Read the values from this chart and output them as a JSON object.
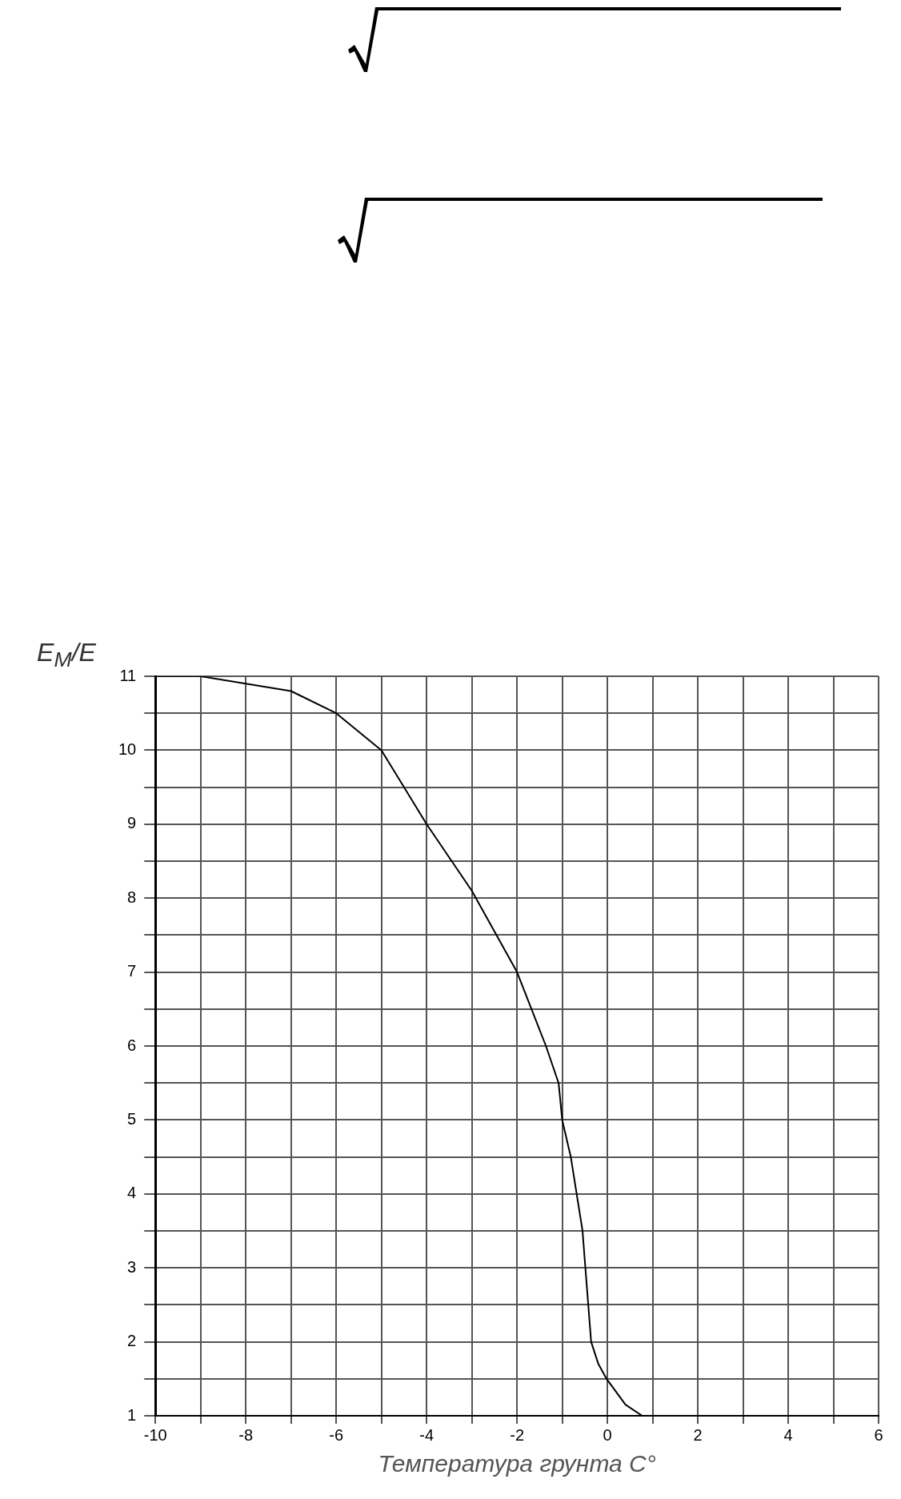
{
  "chart_data": {
    "type": "line",
    "xlabel": "Температура грунта C°",
    "ylabel": "E$_{M}$/E",
    "x": [
      -10,
      -9,
      -8,
      -7,
      -6,
      -5,
      -4,
      -3,
      -2,
      -1.36,
      -1.08,
      -1,
      -0.81,
      -0.55,
      -0.5,
      -0.36,
      -0.2,
      -0.02,
      0.4,
      0.77,
      5
    ],
    "series": [
      {
        "color": "#000000",
        "values": [
          11,
          11,
          10.9,
          10.8,
          10.5,
          10,
          9,
          8.1,
          7,
          6,
          5.5,
          5,
          4.5,
          3.5,
          3.1,
          2,
          1.7,
          1.5,
          1.15,
          1,
          1
        ]
      }
    ],
    "xlim": [
      -10,
      6
    ],
    "xticks": [
      -10,
      {
        "value": -9,
        "label": null
      },
      -8,
      {
        "value": -7,
        "label": null
      },
      -6,
      {
        "value": -5,
        "label": null
      },
      -4,
      {
        "value": -3,
        "label": null
      },
      -2,
      {
        "value": -1,
        "label": null
      },
      0,
      {
        "value": 1,
        "label": null
      },
      2,
      {
        "value": 3,
        "label": null
      },
      4,
      {
        "value": 5,
        "label": null
      },
      6
    ],
    "ylim": [
      1,
      11
    ],
    "yticks": [
      1,
      {
        "value": 1.5,
        "label": null
      },
      2,
      {
        "value": 2.5,
        "label": null
      },
      3,
      {
        "value": 3.5,
        "label": null
      },
      4,
      {
        "value": 4.5,
        "label": null
      },
      5,
      {
        "value": 5.5,
        "label": null
      },
      6,
      {
        "value": 6.5,
        "label": null
      },
      7,
      {
        "value": 7.5,
        "label": null
      },
      8,
      {
        "value": 8.5,
        "label": null
      },
      9,
      {
        "value": 9.5,
        "label": null
      },
      10,
      {
        "value": 10.5,
        "label": null
      },
      11
    ],
    "grid": true,
    "marker": "none",
    "line_style": "solid",
    "legend": false
  }
}
